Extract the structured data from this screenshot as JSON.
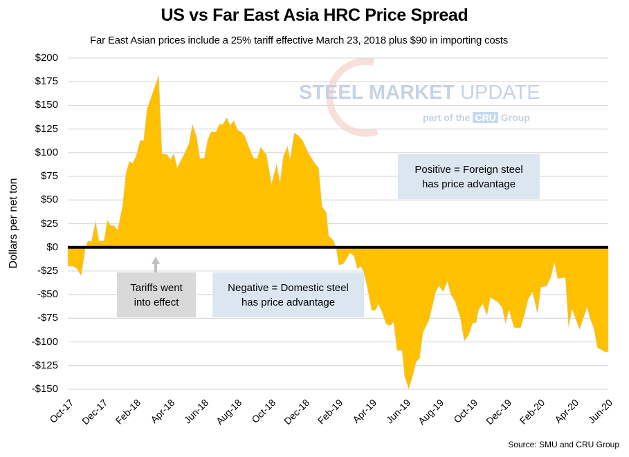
{
  "chart_data": {
    "type": "area",
    "title": "US vs Far East Asia HRC Price Spread",
    "subtitle": "Far East Asian prices include a 25% tariff effective March 23, 2018 plus $90 in importing costs",
    "xlabel": "",
    "ylabel": "Dollars per net ton",
    "ylim": [
      -150,
      200
    ],
    "yticks": [
      200,
      175,
      150,
      125,
      100,
      75,
      50,
      25,
      0,
      -25,
      -50,
      -75,
      -100,
      -125,
      -150
    ],
    "ytick_labels": [
      "$200",
      "$175",
      "$150",
      "$125",
      "$100",
      "$75",
      "$50",
      "$25",
      "$0",
      "-$25",
      "-$50",
      "-$75",
      "-$100",
      "-$125",
      "-$150"
    ],
    "x_unit": "months since Oct-17",
    "xlim": [
      0,
      32.1
    ],
    "xticks": [
      0,
      2,
      4,
      6,
      8,
      10,
      12,
      14,
      16,
      18,
      20,
      22,
      24,
      26,
      28,
      30,
      32
    ],
    "xtick_labels": [
      "Oct-17",
      "Dec-17",
      "Feb-18",
      "Apr-18",
      "Jun-18",
      "Aug-18",
      "Oct-18",
      "Dec-18",
      "Feb-19",
      "Apr-19",
      "Jun-19",
      "Aug-19",
      "Oct-19",
      "Dec-19",
      "Feb-20",
      "Apr-20",
      "Jun-20"
    ],
    "grid": true,
    "fill_color": "#ffc000",
    "zero_line_color": "#000000",
    "series": [
      {
        "name": "US vs Far East Asia HRC spread",
        "x": [
          0,
          0.3,
          0.5,
          0.8,
          1.05,
          1.2,
          1.4,
          1.65,
          1.85,
          2.15,
          2.35,
          2.55,
          2.75,
          2.95,
          3.25,
          3.45,
          3.65,
          3.85,
          4.05,
          4.3,
          4.5,
          4.7,
          5.4,
          5.6,
          5.9,
          6.1,
          6.3,
          6.5,
          6.75,
          6.95,
          7.2,
          7.4,
          7.65,
          7.85,
          8.1,
          8.3,
          8.5,
          8.8,
          9.0,
          9.2,
          9.45,
          9.65,
          9.85,
          10.1,
          10.3,
          10.5,
          10.8,
          11.05,
          11.25,
          11.45,
          11.8,
          12.1,
          12.4,
          12.6,
          12.8,
          13.05,
          13.2,
          13.45,
          13.7,
          13.95,
          14.15,
          14.35,
          14.7,
          14.9,
          15.1,
          15.35,
          15.5,
          15.8,
          15.95,
          16.1,
          16.4,
          16.75,
          17.0,
          17.2,
          17.4,
          17.55,
          17.75,
          18.05,
          18.3,
          18.45,
          18.65,
          18.9,
          19.15,
          19.35,
          19.55,
          19.85,
          20.0,
          20.25,
          20.5,
          20.7,
          20.9,
          21.1,
          21.45,
          21.65,
          21.85,
          22.05,
          22.3,
          22.55,
          22.75,
          23.0,
          23.3,
          23.55,
          23.8,
          24.05,
          24.25,
          24.4,
          24.65,
          24.9,
          25.1,
          25.55,
          25.8,
          26.0,
          26.2,
          26.5,
          26.9,
          27.1,
          27.35,
          27.6,
          27.9,
          28.1,
          28.45,
          28.7,
          28.9,
          29.1,
          29.55,
          29.75,
          29.95,
          30.15,
          30.4,
          30.85,
          31.0,
          31.25,
          31.45,
          31.95,
          32.1
        ],
        "y": [
          -20,
          -20,
          -22,
          -30,
          0,
          7,
          6,
          28,
          7,
          7,
          29,
          23,
          23,
          18,
          44,
          78,
          91,
          89,
          96,
          113,
          113,
          146,
          182,
          99,
          98,
          93,
          99,
          84,
          93,
          100,
          110,
          130,
          117,
          94,
          94,
          113,
          122,
          122,
          130,
          130,
          137,
          129,
          134,
          124,
          122,
          118,
          104,
          94,
          94,
          106,
          98,
          67,
          88,
          69,
          96,
          107,
          93,
          121,
          118,
          113,
          105,
          98,
          88,
          84,
          43,
          37,
          12,
          7,
          -2,
          -19,
          -17,
          -6,
          -9,
          -23,
          -20,
          -25,
          -39,
          -67,
          -66,
          -60,
          -68,
          -81,
          -83,
          -79,
          -109,
          -109,
          -136,
          -150,
          -135,
          -121,
          -117,
          -90,
          -77,
          -63,
          -47,
          -41,
          -47,
          -36,
          -50,
          -57,
          -74,
          -99,
          -93,
          -80,
          -80,
          -66,
          -60,
          -72,
          -53,
          -58,
          -64,
          -81,
          -66,
          -85,
          -85,
          -73,
          -55,
          -47,
          -70,
          -42,
          -41,
          -31,
          -16,
          -33,
          -32,
          -85,
          -65,
          -75,
          -87,
          -63,
          -74,
          -86,
          -106,
          -111,
          -110
        ]
      }
    ],
    "annotations": [
      {
        "text_line1": "Positive = Foreign steel",
        "text_line2": "has price advantage"
      },
      {
        "text_line1": "Negative = Domestic steel",
        "text_line2": "has price advantage"
      },
      {
        "text_line1": "Tariffs went",
        "text_line2": "into effect"
      }
    ]
  },
  "watermark": {
    "bold": "STEEL MARKET",
    "light": "UPDATE",
    "sub_pre": "part of the",
    "sub_logo": "CRU",
    "sub_post": "Group"
  },
  "source": "Source: SMU and CRU Group"
}
